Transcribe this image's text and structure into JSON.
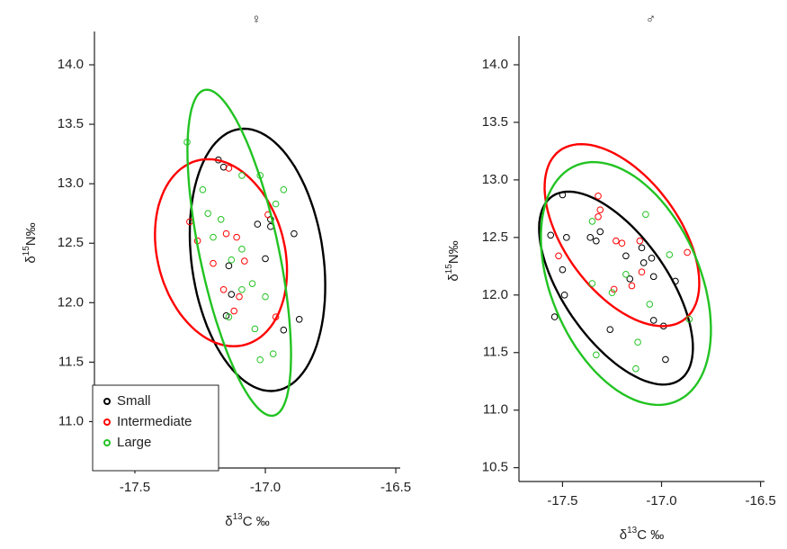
{
  "chart_data": [
    {
      "type": "scatter",
      "title": "♀",
      "xlabel": [
        "δ",
        "13",
        "C ‰"
      ],
      "ylabel": [
        "δ",
        "15",
        "N‰"
      ],
      "xlim": [
        -17.655,
        -16.483
      ],
      "ylim": [
        10.61,
        14.28
      ],
      "xticks": [
        -17.5,
        {
          "value": -17,
          "label": "-17.0"
        },
        -16.5
      ],
      "yticks": [
        {
          "value": 11,
          "label": "11.0"
        },
        11.5,
        {
          "value": 12,
          "label": "12.0"
        },
        12.5,
        {
          "value": 13,
          "label": "13.0"
        },
        13.5,
        {
          "value": 14,
          "label": "14.0"
        }
      ],
      "legend": "bottomleft",
      "series": [
        {
          "name": "Small",
          "color": "#000000",
          "x": [
            -17.18,
            -17.16,
            -17.03,
            -16.98,
            -16.98,
            -17.0,
            -16.89,
            -17.14,
            -17.13,
            -17.15,
            -16.93,
            -16.87
          ],
          "y": [
            13.2,
            13.14,
            12.66,
            12.64,
            12.7,
            12.37,
            12.58,
            12.31,
            12.07,
            11.89,
            11.77,
            11.86
          ],
          "ellipse": {
            "center": [
              -17.03,
              12.36
            ],
            "axis1": [
              -0.07,
              1.1
            ],
            "axis2": [
              0.25,
              0.08
            ]
          }
        },
        {
          "name": "Intermediate",
          "color": "#ff0000",
          "x": [
            -17.29,
            -17.26,
            -17.14,
            -17.15,
            -17.11,
            -17.2,
            -17.08,
            -17.16,
            -17.1,
            -16.99,
            -16.96,
            -17.12
          ],
          "y": [
            12.68,
            12.52,
            13.13,
            12.58,
            12.55,
            12.33,
            12.35,
            12.11,
            12.05,
            12.74,
            11.88,
            11.93
          ],
          "ellipse": {
            "center": [
              -17.17,
              12.42
            ],
            "axis1": [
              -0.08,
              0.78
            ],
            "axis2": [
              0.24,
              0.1
            ]
          }
        },
        {
          "name": "Large",
          "color": "#22c322",
          "x": [
            -17.3,
            -17.24,
            -17.22,
            -17.17,
            -17.2,
            -17.09,
            -17.02,
            -16.96,
            -17.09,
            -17.13,
            -17.05,
            -17.09,
            -17.0,
            -17.14,
            -17.04,
            -16.97,
            -17.02,
            -16.93
          ],
          "y": [
            13.35,
            12.95,
            12.75,
            12.7,
            12.55,
            13.07,
            13.07,
            12.83,
            12.45,
            12.36,
            12.16,
            12.11,
            12.05,
            11.88,
            11.78,
            11.57,
            11.52,
            12.95
          ],
          "ellipse": {
            "center": [
              -17.1,
              12.42
            ],
            "axis1": [
              -0.13,
              1.37
            ],
            "axis2": [
              0.15,
              0.05
            ]
          }
        }
      ]
    },
    {
      "type": "scatter",
      "title": "♂",
      "xlabel": [
        "δ",
        "13",
        "C ‰"
      ],
      "ylabel": [
        "δ",
        "15",
        "N‰"
      ],
      "xlim": [
        -17.72,
        -16.48
      ],
      "ylim": [
        10.38,
        14.25
      ],
      "xticks": [
        -17.5,
        {
          "value": -17,
          "label": "-17.0"
        },
        -16.5
      ],
      "yticks": [
        10.5,
        {
          "value": 11,
          "label": "11.0"
        },
        11.5,
        {
          "value": 12,
          "label": "12.0"
        },
        12.5,
        {
          "value": 13,
          "label": "13.0"
        },
        13.5,
        {
          "value": 14,
          "label": "14.0"
        }
      ],
      "series": [
        {
          "color": "#000000",
          "x": [
            -17.5,
            -17.56,
            -17.48,
            -17.5,
            -17.49,
            -17.54,
            -17.36,
            -17.31,
            -17.33,
            -17.18,
            -17.1,
            -17.09,
            -17.05,
            -17.16,
            -17.04,
            -16.93,
            -17.04,
            -16.99,
            -16.98,
            -17.26
          ],
          "y": [
            12.87,
            12.52,
            12.5,
            12.22,
            12.0,
            11.81,
            12.5,
            12.55,
            12.47,
            12.34,
            12.41,
            12.28,
            12.32,
            12.14,
            12.16,
            12.12,
            11.78,
            11.73,
            11.44,
            11.7
          ],
          "ellipse": {
            "center": [
              -17.23,
              12.06
            ],
            "axis1": [
              0.32,
              -0.8
            ],
            "axis2": [
              0.22,
              0.25
            ]
          }
        },
        {
          "color": "#ff0000",
          "x": [
            -17.32,
            -17.31,
            -17.32,
            -17.52,
            -17.23,
            -17.2,
            -17.11,
            -17.15,
            -17.1,
            -17.24,
            -16.87
          ],
          "y": [
            12.86,
            12.74,
            12.68,
            12.34,
            12.47,
            12.45,
            12.47,
            12.08,
            12.2,
            12.05,
            12.37
          ],
          "ellipse": {
            "center": [
              -17.2,
              12.52
            ],
            "axis1": [
              0.3,
              -0.75
            ],
            "axis2": [
              0.25,
              0.25
            ]
          }
        },
        {
          "color": "#22c322",
          "x": [
            -17.35,
            -17.08,
            -16.96,
            -17.35,
            -17.25,
            -17.18,
            -17.06,
            -16.86,
            -17.12,
            -17.13,
            -17.33
          ],
          "y": [
            12.64,
            12.7,
            12.35,
            12.1,
            12.02,
            12.18,
            11.92,
            11.79,
            11.59,
            11.36,
            11.48
          ],
          "ellipse": {
            "center": [
              -17.18,
              12.1
            ],
            "axis1": [
              0.2,
              -1.05
            ],
            "axis2": [
              0.38,
              0.1
            ]
          }
        }
      ]
    }
  ]
}
